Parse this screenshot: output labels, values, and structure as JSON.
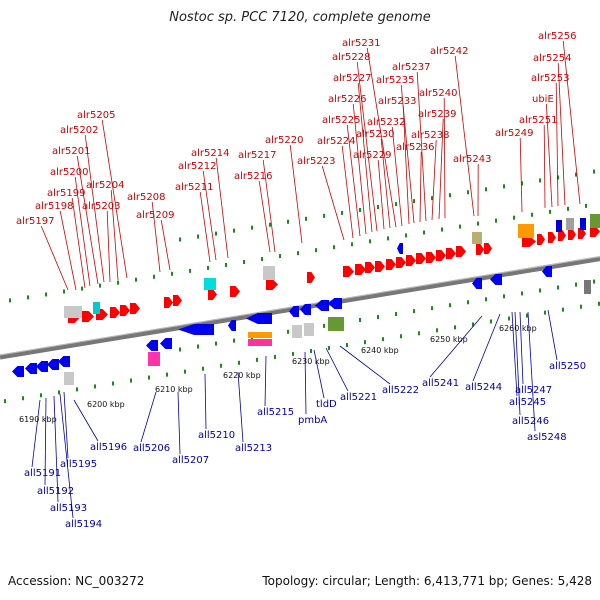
{
  "header": {
    "title": "Nostoc sp. PCC 7120, complete genome"
  },
  "footer": {
    "accession": "Accession: NC_003272",
    "topology": "Topology: circular; Length: 6,413,771 bp; Genes: 5,428"
  },
  "colors": {
    "forward_gene_label": "#cc0000",
    "reverse_gene_label": "#0000aa",
    "forward_gene": "#ff0000",
    "reverse_gene": "#0000ee",
    "genome_axis": "#777777",
    "tick": "#1a8a1a",
    "kbp_label": "#111111"
  },
  "forward_genes": [
    "alr5197",
    "alr5198",
    "alr5199",
    "alr5200",
    "alr5201",
    "alr5202",
    "alr5203",
    "alr5204",
    "alr5205",
    "alr5208",
    "alr5209",
    "alr5211",
    "alr5212",
    "alr5214",
    "alr5216",
    "alr5217",
    "alr5220",
    "alr5223",
    "alr5224",
    "alr5225",
    "alr5226",
    "alr5227",
    "alr5228",
    "alr5229",
    "alr5230",
    "alr5231",
    "alr5232",
    "alr5233",
    "alr5235",
    "alr5236",
    "alr5237",
    "alr5238",
    "alr5239",
    "alr5240",
    "alr5242",
    "alr5243",
    "alr5249",
    "alr5251",
    "ubiE",
    "alr5253",
    "alr5254",
    "alr5256"
  ],
  "reverse_genes": [
    "all5191",
    "all5192",
    "all5193",
    "all5194",
    "all5195",
    "all5196",
    "all5206",
    "all5207",
    "all5210",
    "all5213",
    "all5215",
    "pmbA",
    "tldD",
    "all5221",
    "all5222",
    "all5241",
    "all5244",
    "all5245",
    "all5246",
    "all5247",
    "asl5248",
    "all5250"
  ],
  "kbp_marks": [
    "6190 kbp",
    "6200 kbp",
    "6210 kbp",
    "6220 kbp",
    "6230 kbp",
    "6240 kbp",
    "6250 kbp",
    "6260 kbp"
  ]
}
